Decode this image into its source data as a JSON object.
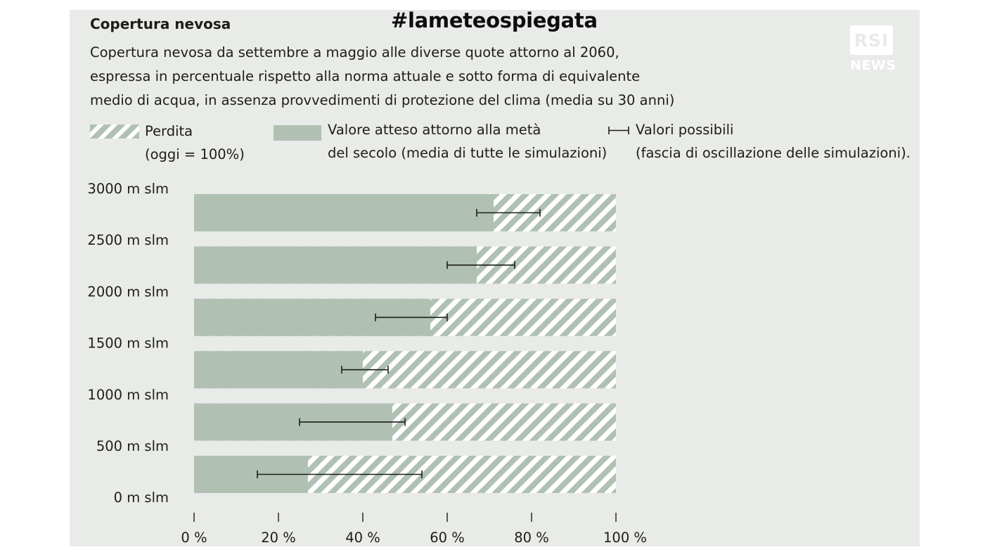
{
  "header": {
    "hashtag": "#lameteospiegata",
    "title": "Copertura nevosa",
    "subtitle_lines": [
      "Copertura nevosa da settembre a maggio alle diverse quote attorno al 2060,",
      "espressa in percentuale rispetto alla norma attuale e sotto forma di equivalente",
      "medio di acqua, in assenza provvedimenti di protezione del clima (media su 30 anni)"
    ]
  },
  "logo": {
    "box_text": "RSI",
    "sub_text": "NEWS"
  },
  "legend": {
    "loss": {
      "line1": "Perdita",
      "line2": "(oggi = 100%)"
    },
    "expected": {
      "line1": "Valore atteso attorno alla metà",
      "line2": "del secolo (media di tutte le simulazioni)"
    },
    "range": {
      "line1": "Valori possibili",
      "line2": "(fascia di oscillazione delle simulazioni)."
    }
  },
  "colors": {
    "background": "#e8ebe8",
    "bar_fill": "#b0c1b3",
    "hatch_stripe": "#b0c1b3",
    "hatch_bg": "#ffffff",
    "text": "#1d1d1b",
    "whisker": "#1d1d1b"
  },
  "chart_data": {
    "type": "bar",
    "orientation": "horizontal",
    "y_tick_labels": [
      "3000 m slm",
      "2500 m slm",
      "2000 m slm",
      "1500 m slm",
      "1000 m slm",
      "500 m slm",
      "0 m slm"
    ],
    "x_tick_labels": [
      "0 %",
      "20 %",
      "40 %",
      "60 %",
      "80 %",
      "100 %"
    ],
    "xlim": [
      0,
      100
    ],
    "bars": [
      {
        "expected": 71,
        "low": 67,
        "high": 82
      },
      {
        "expected": 67,
        "low": 60,
        "high": 76
      },
      {
        "expected": 56,
        "low": 43,
        "high": 60
      },
      {
        "expected": 40,
        "low": 35,
        "high": 46
      },
      {
        "expected": 47,
        "low": 25,
        "high": 50
      },
      {
        "expected": 27,
        "low": 15,
        "high": 54
      }
    ],
    "total": 100,
    "grid": false
  }
}
